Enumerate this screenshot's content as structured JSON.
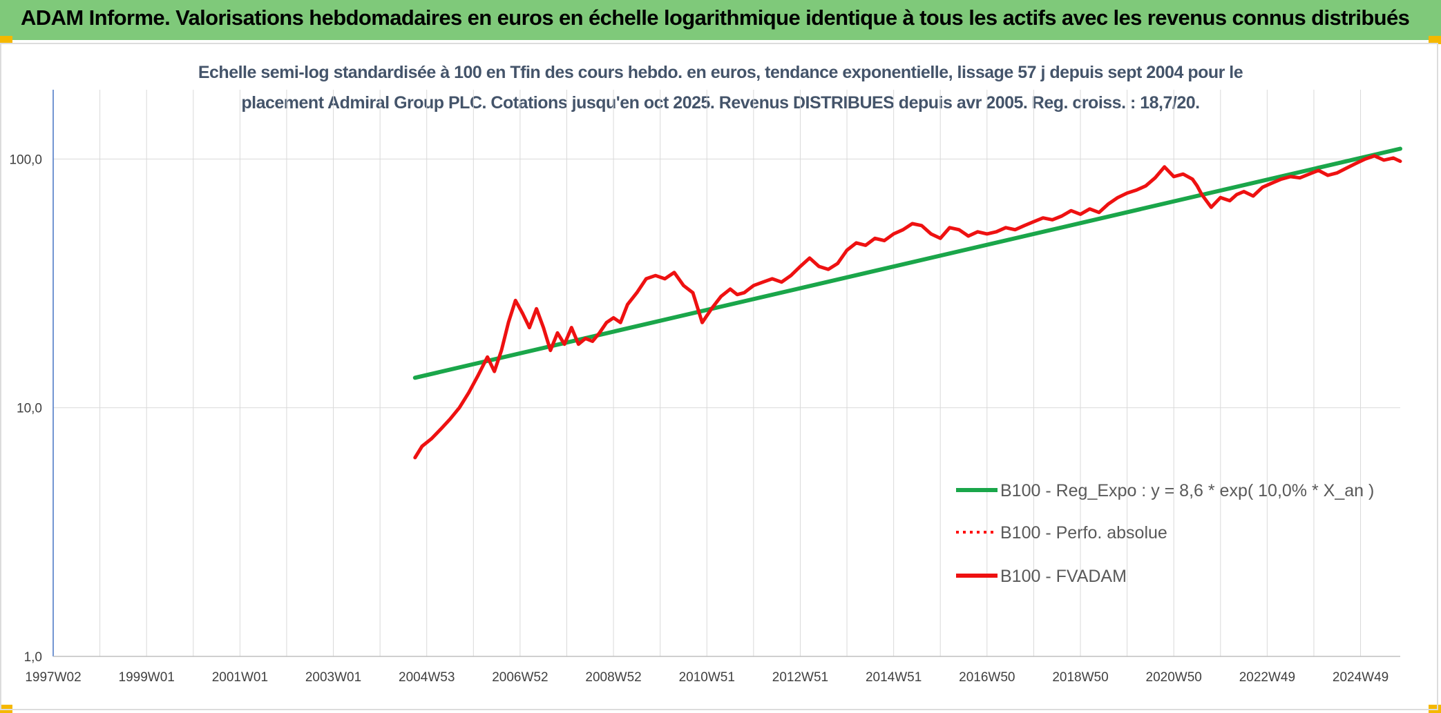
{
  "header": {
    "title": "ADAM Informe. Valorisations hebdomadaires en euros en échelle logarithmique identique à tous les actifs avec les revenus connus distribués"
  },
  "chart_data": {
    "type": "line",
    "title_line1": "Echelle semi-log standardisée à 100 en Tfin des cours hebdo. en euros, tendance exponentielle, lissage 57 j depuis sept 2004 pour le",
    "title_line2": "placement Admiral Group PLC. Cotations jusqu'en oct 2025. Revenus DISTRIBUES depuis avr 2005. Reg. croiss. : 18,7/20.",
    "y_scale": "log",
    "ylim": [
      1,
      190
    ],
    "xlim": [
      1997.0,
      2025.85
    ],
    "y_ticks": [
      {
        "value": 1,
        "label": "1,0"
      },
      {
        "value": 10,
        "label": "10,0"
      },
      {
        "value": 100,
        "label": "100,0"
      }
    ],
    "x_ticks": [
      {
        "value": 1997.0,
        "label": "1997W02"
      },
      {
        "value": 1999.0,
        "label": "1999W01"
      },
      {
        "value": 2001.0,
        "label": "2001W01"
      },
      {
        "value": 2003.0,
        "label": "2003W01"
      },
      {
        "value": 2005.0,
        "label": "2004W53"
      },
      {
        "value": 2007.0,
        "label": "2006W52"
      },
      {
        "value": 2009.0,
        "label": "2008W52"
      },
      {
        "value": 2011.0,
        "label": "2010W51"
      },
      {
        "value": 2013.0,
        "label": "2012W51"
      },
      {
        "value": 2015.0,
        "label": "2014W51"
      },
      {
        "value": 2017.0,
        "label": "2016W50"
      },
      {
        "value": 2019.0,
        "label": "2018W50"
      },
      {
        "value": 2021.0,
        "label": "2020W50"
      },
      {
        "value": 2023.0,
        "label": "2022W49"
      },
      {
        "value": 2025.0,
        "label": "2024W49"
      }
    ],
    "grid": "vertical gridlines at every year, horizontal at 1, 10, 100",
    "legend_position": "bottom-right",
    "series": [
      {
        "name": "B100 - Reg_Expo : y = 8,6 * exp( 10,0% *  X_an )",
        "color": "#1aa64a",
        "style": "solid",
        "x": [
          2004.75,
          2025.85
        ],
        "y": [
          13.2,
          110
        ]
      },
      {
        "name": "B100 - Perfo. absolue",
        "color": "#ff0000",
        "style": "dotted",
        "x": [],
        "y": []
      },
      {
        "name": "B100 - FVADAM",
        "color": "#ee1111",
        "style": "solid",
        "x": [
          2004.75,
          2004.9,
          2005.1,
          2005.3,
          2005.5,
          2005.7,
          2005.9,
          2006.1,
          2006.3,
          2006.45,
          2006.6,
          2006.75,
          2006.9,
          2007.05,
          2007.2,
          2007.35,
          2007.5,
          2007.65,
          2007.8,
          2007.95,
          2008.1,
          2008.25,
          2008.4,
          2008.55,
          2008.7,
          2008.85,
          2009.0,
          2009.15,
          2009.3,
          2009.5,
          2009.7,
          2009.9,
          2010.1,
          2010.3,
          2010.5,
          2010.7,
          2010.9,
          2011.1,
          2011.3,
          2011.5,
          2011.65,
          2011.8,
          2011.9,
          2012.0,
          2012.2,
          2012.4,
          2012.6,
          2012.8,
          2013.0,
          2013.2,
          2013.4,
          2013.6,
          2013.8,
          2014.0,
          2014.2,
          2014.4,
          2014.6,
          2014.8,
          2015.0,
          2015.2,
          2015.4,
          2015.6,
          2015.8,
          2016.0,
          2016.2,
          2016.4,
          2016.6,
          2016.8,
          2017.0,
          2017.2,
          2017.4,
          2017.6,
          2017.8,
          2018.0,
          2018.2,
          2018.4,
          2018.6,
          2018.8,
          2019.0,
          2019.2,
          2019.4,
          2019.6,
          2019.8,
          2020.0,
          2020.2,
          2020.4,
          2020.6,
          2020.8,
          2021.0,
          2021.2,
          2021.4,
          2021.5,
          2021.6,
          2021.8,
          2022.0,
          2022.2,
          2022.35,
          2022.5,
          2022.7,
          2022.9,
          2023.1,
          2023.3,
          2023.5,
          2023.7,
          2023.9,
          2024.1,
          2024.3,
          2024.5,
          2024.7,
          2024.9,
          2025.1,
          2025.3,
          2025.5,
          2025.7,
          2025.85
        ],
        "y": [
          6.3,
          7.0,
          7.5,
          8.2,
          9.0,
          10.0,
          11.5,
          13.5,
          16.0,
          14.0,
          17.0,
          22.0,
          27.0,
          24.0,
          21.0,
          25.0,
          21.0,
          17.0,
          20.0,
          18.0,
          21.0,
          18.0,
          19.0,
          18.5,
          20.0,
          22.0,
          23.0,
          22.0,
          26.0,
          29.0,
          33.0,
          34.0,
          33.0,
          35.0,
          31.0,
          29.0,
          22.0,
          25.0,
          28.0,
          30.0,
          28.5,
          29.0,
          30.0,
          31.0,
          32.0,
          33.0,
          32.0,
          34.0,
          37.0,
          40.0,
          37.0,
          36.0,
          38.0,
          43.0,
          46.0,
          45.0,
          48.0,
          47.0,
          50.0,
          52.0,
          55.0,
          54.0,
          50.0,
          48.0,
          53.0,
          52.0,
          49.0,
          51.0,
          50.0,
          51.0,
          53.0,
          52.0,
          54.0,
          56.0,
          58.0,
          57.0,
          59.0,
          62.0,
          60.0,
          63.0,
          61.0,
          66.0,
          70.0,
          73.0,
          75.0,
          78.0,
          84.0,
          93.0,
          85.0,
          87.0,
          83.0,
          78.0,
          72.0,
          64.0,
          70.0,
          68.0,
          72.0,
          74.0,
          71.0,
          77.0,
          80.0,
          83.0,
          85.0,
          84.0,
          87.0,
          90.0,
          86.0,
          88.0,
          92.0,
          96.0,
          100.0,
          103.0,
          99.0,
          101.0,
          98.0
        ]
      }
    ]
  }
}
